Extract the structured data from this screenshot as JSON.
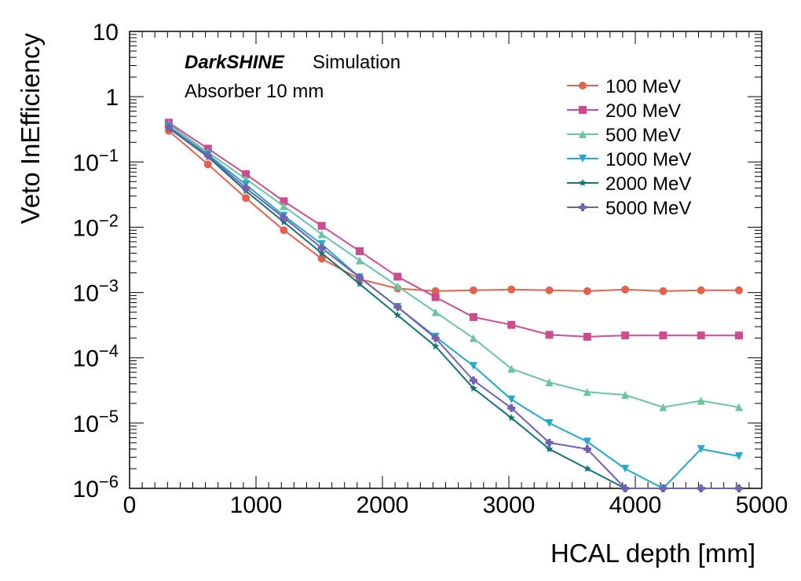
{
  "chart_data": {
    "type": "line",
    "title": "",
    "experiment": "DarkSHINE",
    "experiment_status": "Simulation",
    "annotation": "Absorber 10 mm",
    "xlabel": "HCAL depth [mm]",
    "ylabel": "Veto InEfficiency",
    "xlim": [
      0,
      5000
    ],
    "ylim": [
      1e-06,
      10
    ],
    "yscale": "log",
    "grid": false,
    "legend_position": "top-right",
    "x_ticks": [
      "0",
      "1000",
      "2000",
      "3000",
      "4000",
      "5000"
    ],
    "y_ticks": [
      {
        "mantissa": "10",
        "exp": ""
      },
      {
        "mantissa": "1",
        "exp": ""
      },
      {
        "mantissa": "10",
        "exp": "−1"
      },
      {
        "mantissa": "10",
        "exp": "−2"
      },
      {
        "mantissa": "10",
        "exp": "−3"
      },
      {
        "mantissa": "10",
        "exp": "−4"
      },
      {
        "mantissa": "10",
        "exp": "−5"
      },
      {
        "mantissa": "10",
        "exp": "−6"
      }
    ],
    "x": [
      310,
      620,
      920,
      1220,
      1520,
      1820,
      2120,
      2420,
      2720,
      3020,
      3320,
      3620,
      3920,
      4220,
      4520,
      4820
    ],
    "series": [
      {
        "name": "100 MeV",
        "color": "#e1634e",
        "marker": "circle",
        "values": [
          0.3,
          0.092,
          0.028,
          0.009,
          0.0033,
          0.0016,
          0.00115,
          0.00105,
          0.00108,
          0.00111,
          0.00108,
          0.00105,
          0.00111,
          0.00105,
          0.00108,
          0.00108
        ]
      },
      {
        "name": "200 MeV",
        "color": "#cd4c8f",
        "marker": "square",
        "values": [
          0.4,
          0.16,
          0.065,
          0.025,
          0.0105,
          0.0043,
          0.00175,
          0.00085,
          0.00042,
          0.00032,
          0.000225,
          0.00021,
          0.00022,
          0.00022,
          0.00022,
          0.00022
        ]
      },
      {
        "name": "500 MeV",
        "color": "#6bc3a1",
        "marker": "triangle-up",
        "values": [
          0.38,
          0.14,
          0.055,
          0.021,
          0.0078,
          0.0031,
          0.00125,
          0.0005,
          0.0002,
          6.8e-05,
          4.2e-05,
          3e-05,
          2.7e-05,
          1.75e-05,
          2.2e-05,
          1.75e-05
        ]
      },
      {
        "name": "1000 MeV",
        "color": "#22a8c8",
        "marker": "triangle-down",
        "values": [
          0.35,
          0.13,
          0.045,
          0.015,
          0.0055,
          0.0017,
          0.0006,
          0.00021,
          7.5e-05,
          2.3e-05,
          1e-05,
          5.2e-06,
          2e-06,
          1e-06,
          4e-06,
          3.1e-06
        ]
      },
      {
        "name": "2000 MeV",
        "color": "#137377",
        "marker": "star",
        "values": [
          0.33,
          0.12,
          0.036,
          0.012,
          0.004,
          0.00135,
          0.00045,
          0.00015,
          3.4e-05,
          1.2e-05,
          4e-06,
          2e-06,
          1e-06,
          1e-06,
          1e-06,
          1e-06
        ]
      },
      {
        "name": "5000 MeV",
        "color": "#7460b0",
        "marker": "cross",
        "values": [
          0.34,
          0.125,
          0.04,
          0.014,
          0.0048,
          0.0017,
          0.0006,
          0.0002,
          4.5e-05,
          1.7e-05,
          5e-06,
          4e-06,
          1e-06,
          1e-06,
          1e-06,
          1e-06
        ]
      }
    ]
  }
}
